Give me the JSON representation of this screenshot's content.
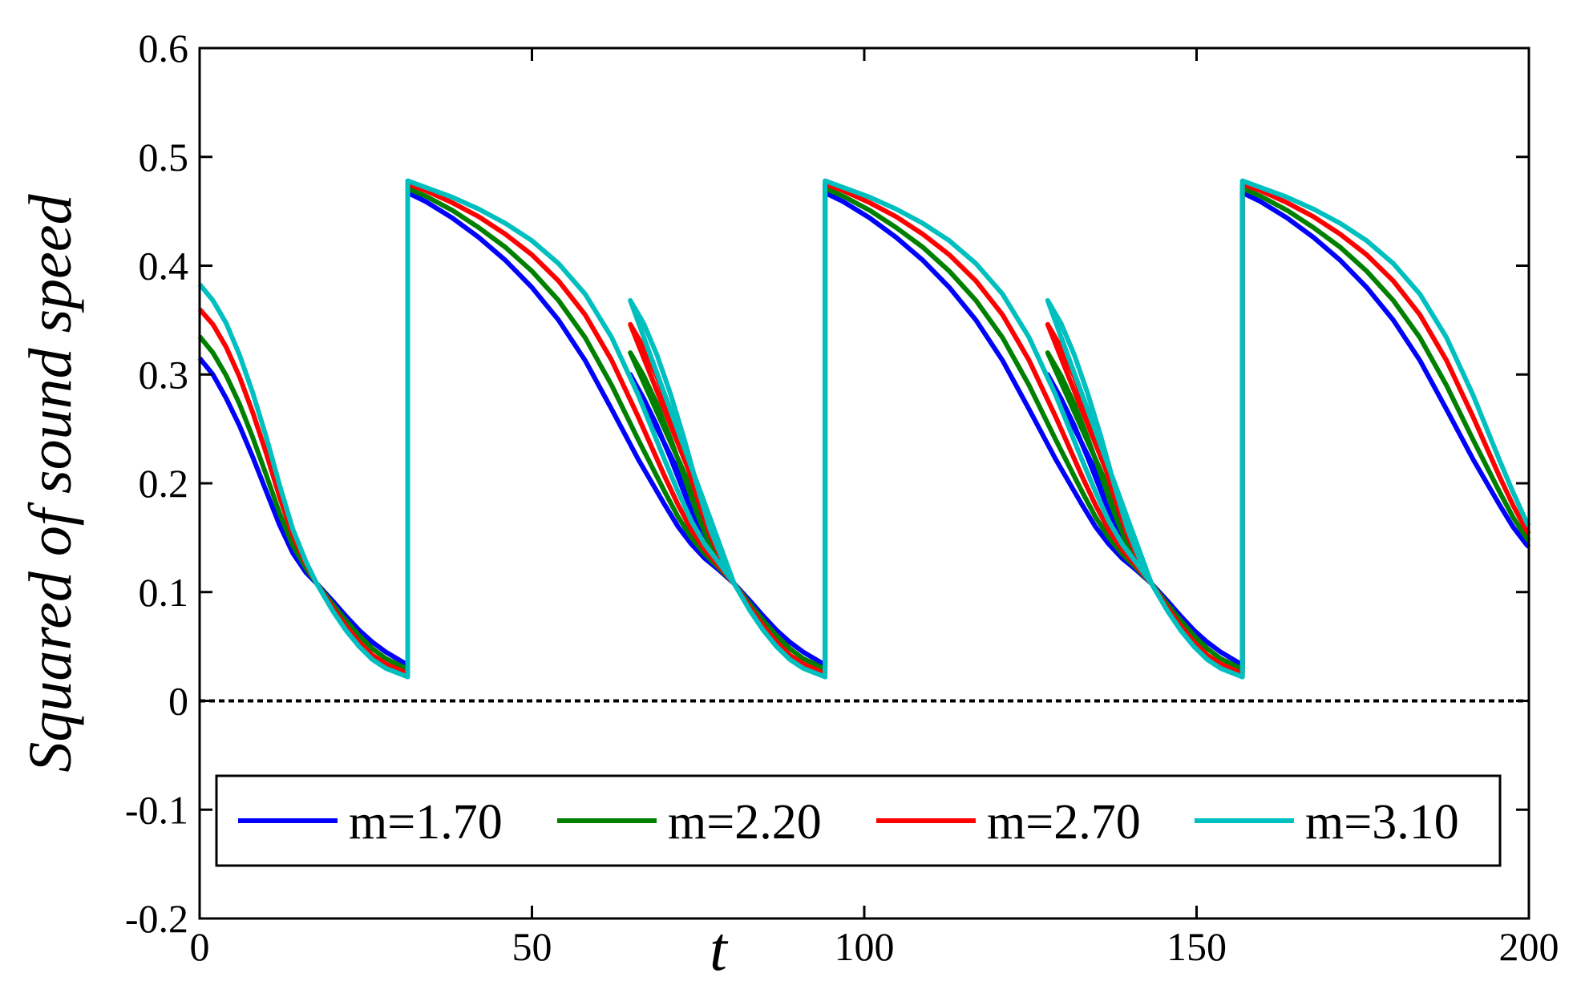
{
  "chart_data": {
    "type": "line",
    "title": "",
    "xlabel": "t",
    "ylabel": "Squared of sound speed",
    "xlim": [
      0,
      200
    ],
    "ylim": [
      -0.2,
      0.6
    ],
    "xticks": [
      0,
      50,
      100,
      150,
      200
    ],
    "xtick_labels": [
      "0",
      "50",
      "100",
      "150",
      "200"
    ],
    "yticks": [
      -0.2,
      -0.1,
      0,
      0.1,
      0.2,
      0.3,
      0.4,
      0.5,
      0.6
    ],
    "ytick_labels": [
      "-0.2",
      "-0.1",
      "0",
      "0.1",
      "0.2",
      "0.3",
      "0.4",
      "0.5",
      "0.6"
    ],
    "grid": false,
    "legend_position": "bottom",
    "reference_line": {
      "y": 0,
      "style": "dotted",
      "color": "#000000"
    },
    "period": 62.8,
    "series": [
      {
        "name": "m=1.70",
        "color": "#0000ff",
        "x": [
          0,
          2,
          4,
          6,
          8,
          10,
          12,
          14,
          16,
          17.6,
          20,
          22,
          24,
          26,
          28,
          31.3
        ],
        "y": [
          0.315,
          0.3,
          0.278,
          0.253,
          0.224,
          0.193,
          0.162,
          0.136,
          0.118,
          0.108,
          0.092,
          0.078,
          0.065,
          0.054,
          0.045,
          0.033
        ],
        "y_reset": 0.467,
        "x_rest": [
          31.3,
          34,
          38,
          42,
          46,
          50,
          54,
          58,
          62,
          66,
          70,
          72,
          74,
          76,
          78,
          80.4
        ],
        "y_rest": [
          0.467,
          0.459,
          0.444,
          0.426,
          0.405,
          0.38,
          0.35,
          0.313,
          0.268,
          0.222,
          0.18,
          0.16,
          0.144,
          0.131,
          0.121,
          0.108
        ]
      },
      {
        "name": "m=2.20",
        "color": "#008000",
        "x": [
          0,
          2,
          4,
          6,
          8,
          10,
          12,
          14,
          16,
          17.6,
          20,
          22,
          24,
          26,
          28,
          31.3
        ],
        "y": [
          0.335,
          0.32,
          0.299,
          0.273,
          0.242,
          0.208,
          0.173,
          0.143,
          0.122,
          0.108,
          0.089,
          0.074,
          0.06,
          0.048,
          0.039,
          0.029
        ],
        "y_reset": 0.471,
        "x_rest": [
          31.3,
          34,
          38,
          42,
          46,
          50,
          54,
          58,
          62,
          66,
          70,
          72,
          74,
          76,
          78,
          80.4
        ],
        "y_rest": [
          0.471,
          0.464,
          0.451,
          0.435,
          0.417,
          0.395,
          0.368,
          0.334,
          0.29,
          0.24,
          0.192,
          0.169,
          0.15,
          0.135,
          0.123,
          0.108
        ]
      },
      {
        "name": "m=2.70",
        "color": "#ff0000",
        "x": [
          0,
          2,
          4,
          6,
          8,
          10,
          12,
          14,
          16,
          17.6,
          20,
          22,
          24,
          26,
          28,
          31.3
        ],
        "y": [
          0.36,
          0.346,
          0.325,
          0.298,
          0.265,
          0.228,
          0.188,
          0.152,
          0.126,
          0.108,
          0.086,
          0.069,
          0.054,
          0.042,
          0.034,
          0.025
        ],
        "y_reset": 0.475,
        "x_rest": [
          31.3,
          34,
          38,
          42,
          46,
          50,
          54,
          58,
          62,
          66,
          70,
          72,
          74,
          76,
          78,
          80.4
        ],
        "y_rest": [
          0.475,
          0.469,
          0.458,
          0.445,
          0.429,
          0.41,
          0.386,
          0.355,
          0.313,
          0.261,
          0.206,
          0.18,
          0.157,
          0.139,
          0.125,
          0.108
        ]
      },
      {
        "name": "m=3.10",
        "color": "#00bfbf",
        "x": [
          0,
          2,
          4,
          6,
          8,
          10,
          12,
          14,
          16,
          17.6,
          20,
          22,
          24,
          26,
          28,
          31.3
        ],
        "y": [
          0.383,
          0.368,
          0.347,
          0.318,
          0.283,
          0.243,
          0.199,
          0.158,
          0.128,
          0.108,
          0.083,
          0.065,
          0.05,
          0.038,
          0.03,
          0.022
        ],
        "y_reset": 0.478,
        "x_rest": [
          31.3,
          34,
          38,
          42,
          46,
          50,
          54,
          58,
          62,
          66,
          70,
          72,
          74,
          76,
          78,
          80.4
        ],
        "y_rest": [
          0.478,
          0.472,
          0.463,
          0.452,
          0.439,
          0.423,
          0.402,
          0.374,
          0.334,
          0.281,
          0.221,
          0.192,
          0.165,
          0.144,
          0.128,
          0.108
        ]
      }
    ]
  }
}
